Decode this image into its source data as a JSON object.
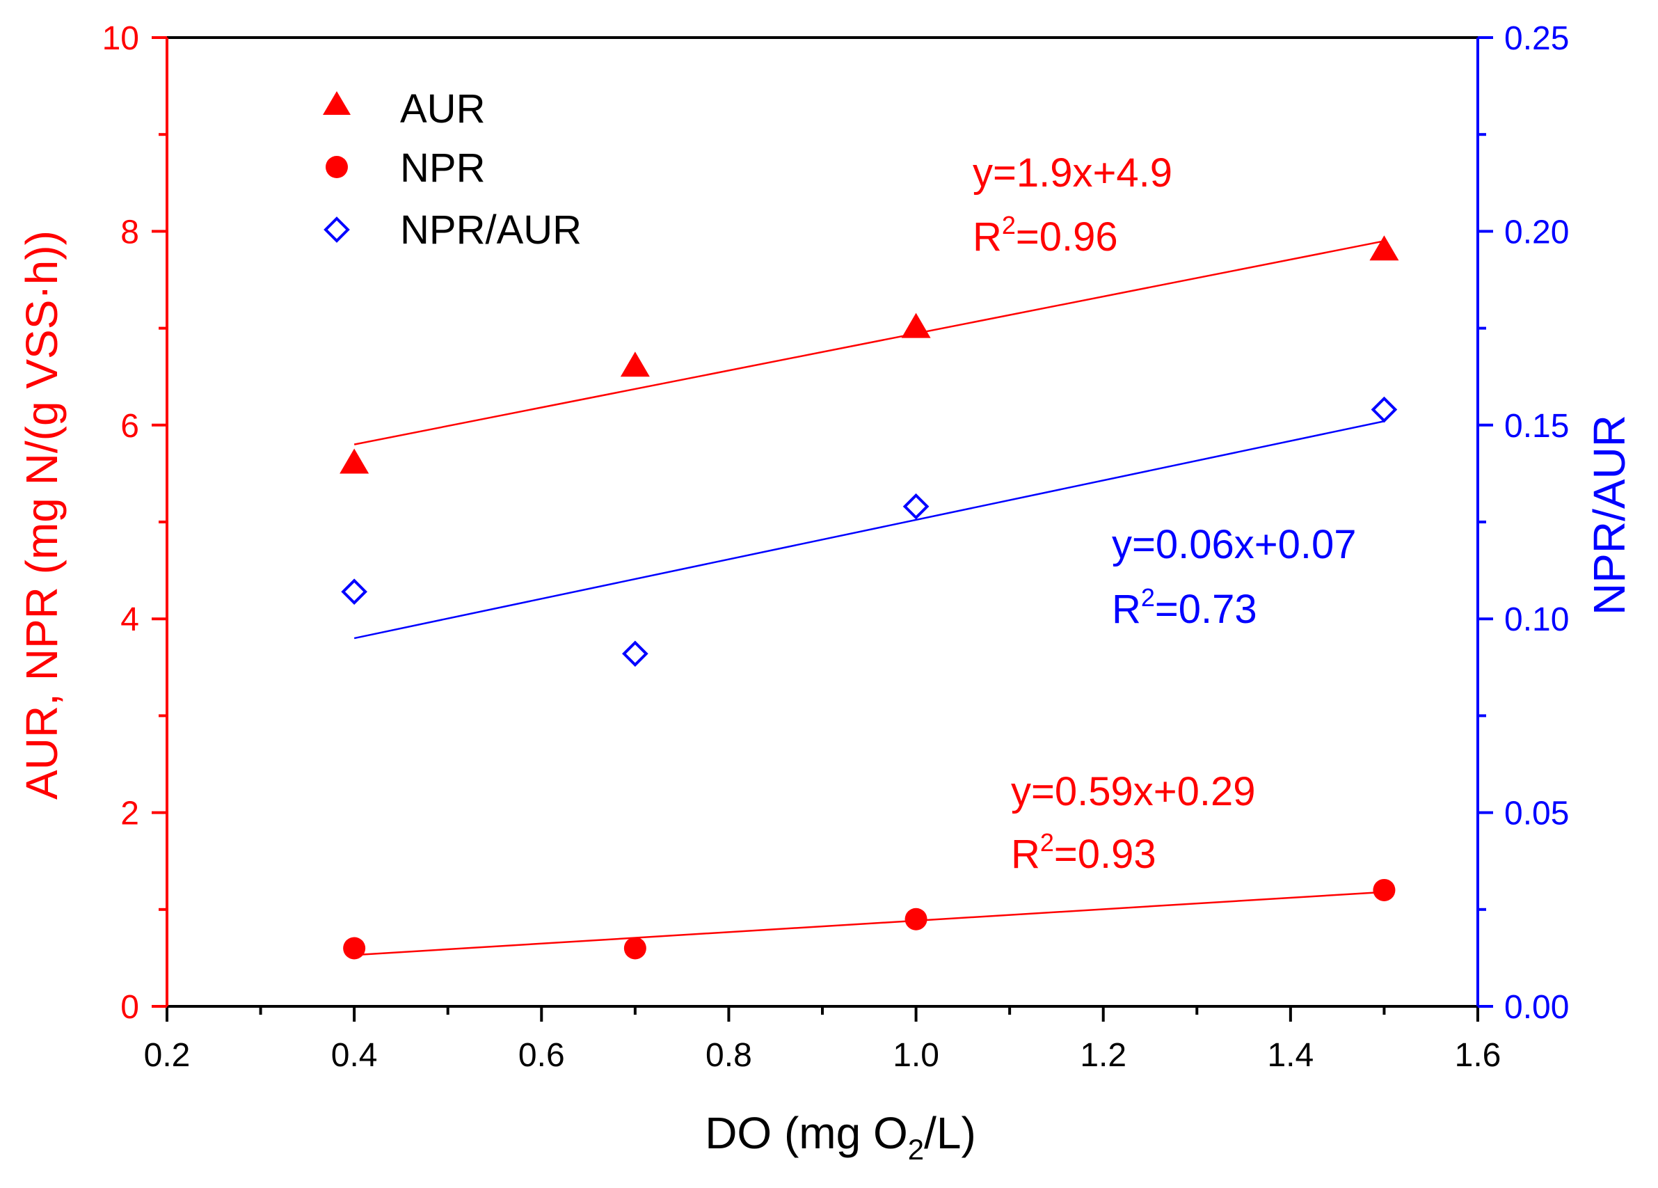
{
  "colors": {
    "left_axis": "#ff0000",
    "right_axis": "#0000ff",
    "bottom_axis": "#000000"
  },
  "chart_data": {
    "type": "scatter",
    "x_axis": {
      "label_main": "DO (mg O",
      "label_sub": "2",
      "label_end": "/L)",
      "range": [
        0.2,
        1.6
      ],
      "ticks": [
        "0.2",
        "0.4",
        "0.6",
        "0.8",
        "1.0",
        "1.2",
        "1.4",
        "1.6"
      ]
    },
    "y_left": {
      "label": "AUR, NPR (mg N/(g VSS·h))",
      "range": [
        0,
        10
      ],
      "ticks": [
        "0",
        "2",
        "4",
        "6",
        "8",
        "10"
      ]
    },
    "y_right": {
      "label": "NPR/AUR",
      "range": [
        0,
        0.25
      ],
      "ticks": [
        "0.00",
        "0.05",
        "0.10",
        "0.15",
        "0.20",
        "0.25"
      ]
    },
    "legend": [
      {
        "label": "AUR",
        "marker": "triangle-filled",
        "color": "#ff0000"
      },
      {
        "label": "NPR",
        "marker": "circle-filled",
        "color": "#ff0000"
      },
      {
        "label": "NPR/AUR",
        "marker": "diamond-open",
        "color": "#0000ff"
      }
    ],
    "series": [
      {
        "name": "AUR",
        "axis": "left",
        "color": "#ff0000",
        "marker": "triangle",
        "x": [
          0.4,
          0.7,
          1.0,
          1.5
        ],
        "y": [
          5.6,
          6.6,
          7.0,
          7.8
        ]
      },
      {
        "name": "NPR",
        "axis": "left",
        "color": "#ff0000",
        "marker": "circle",
        "x": [
          0.4,
          0.7,
          1.0,
          1.5
        ],
        "y": [
          0.6,
          0.6,
          0.9,
          1.2
        ]
      },
      {
        "name": "NPR/AUR",
        "axis": "right",
        "color": "#0000ff",
        "marker": "diamond",
        "x": [
          0.4,
          0.7,
          1.0,
          1.5
        ],
        "y": [
          0.107,
          0.091,
          0.129,
          0.154
        ]
      }
    ],
    "fits": [
      {
        "series": "AUR",
        "axis": "left",
        "color": "#ff0000",
        "x": [
          0.4,
          1.5
        ],
        "y": [
          5.8,
          7.9
        ],
        "eq": "y=1.9x+4.9",
        "r2_value": "=0.96"
      },
      {
        "series": "NPR/AUR",
        "axis": "right",
        "color": "#0000ff",
        "x": [
          0.4,
          1.5
        ],
        "y": [
          0.095,
          0.151
        ],
        "eq": "y=0.06x+0.07",
        "r2_value": "=0.73"
      },
      {
        "series": "NPR",
        "axis": "left",
        "color": "#ff0000",
        "x": [
          0.4,
          1.5
        ],
        "y": [
          0.53,
          1.18
        ],
        "eq": "y=0.59x+0.29",
        "r2_value": "=0.93"
      }
    ],
    "r2_prefix": "R",
    "r2_superscript": "2"
  }
}
